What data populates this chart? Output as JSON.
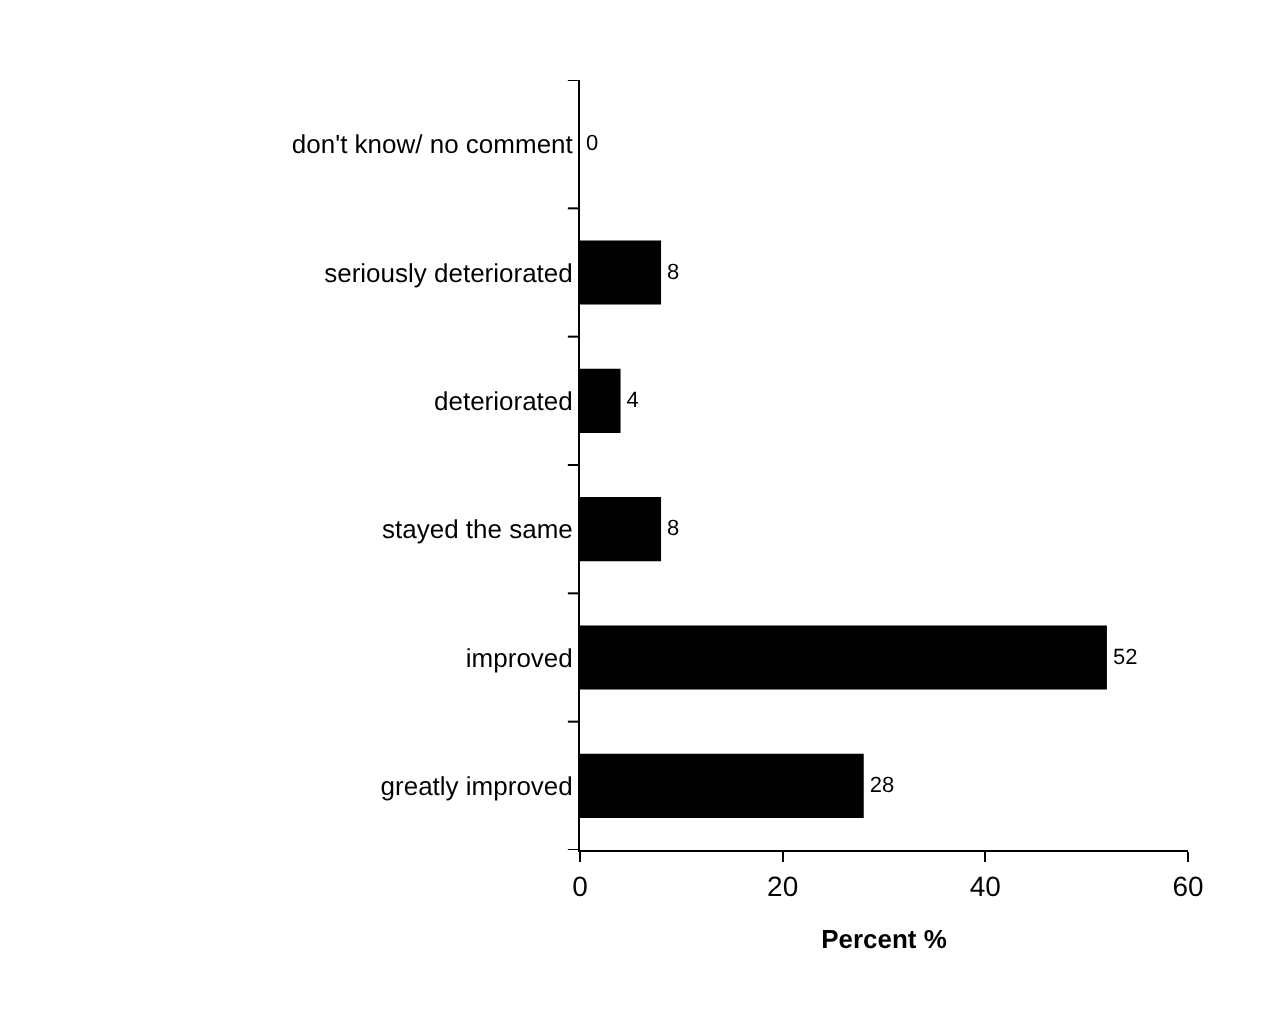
{
  "chart_data": {
    "type": "bar",
    "orientation": "horizontal",
    "xlabel": "Percent %",
    "categories": [
      "don't know/ no comment",
      "seriously deteriorated",
      "deteriorated",
      "stayed the same",
      "improved",
      "greatly improved"
    ],
    "values": [
      0,
      8,
      4,
      8,
      52,
      28
    ],
    "color": "#000000",
    "xlim": [
      0,
      60
    ],
    "xticks": [
      0,
      20,
      40,
      60
    ],
    "grid": false,
    "data_labels": true
  }
}
